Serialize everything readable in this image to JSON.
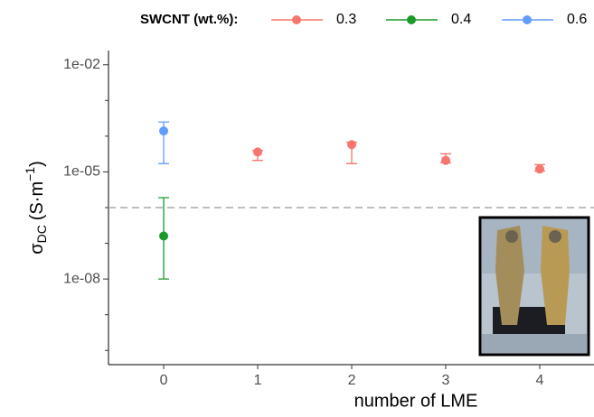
{
  "chart_data": {
    "type": "scatter",
    "y_label": {
      "symbol": "σ",
      "subscript": "DC",
      "unit": "(S·m",
      "superscript": "−1",
      "close": ")"
    },
    "x_label": "number of LME",
    "legend_title": "SWCNT (wt.%):",
    "legend_position": "top",
    "log_y": true,
    "xlim": [
      -0.587,
      4.577
    ],
    "xticks": [
      0,
      1,
      2,
      3,
      4
    ],
    "ylim": [
      4e-11,
      0.025
    ],
    "yticks": [
      {
        "value": 0.01,
        "label": "1e-02"
      },
      {
        "value": 1e-05,
        "label": "1e-05"
      },
      {
        "value": 1e-08,
        "label": "1e-08"
      }
    ],
    "minor_yticks": [
      1e-10,
      1e-09,
      1e-07,
      1e-06,
      0.0001,
      0.001
    ],
    "reference_line": 1e-06,
    "series": [
      {
        "name": "0.3",
        "color": "#F8766D",
        "x": [
          1,
          2,
          3,
          4
        ],
        "values": [
          3.6e-05,
          5.8e-05,
          2.1e-05,
          1.2e-05
        ],
        "lower": [
          2.1e-05,
          1.7e-05,
          1.8e-05,
          1.06e-05
        ],
        "upper": [
          4e-05,
          6.8e-05,
          3.2e-05,
          1.6e-05
        ]
      },
      {
        "name": "0.4",
        "color": "#1A9A2A",
        "x": [
          0
        ],
        "values": [
          1.6e-07
        ],
        "lower": [
          1e-08
        ],
        "upper": [
          1.9e-06
        ]
      },
      {
        "name": "0.6",
        "color": "#619CFF",
        "x": [
          0
        ],
        "values": [
          0.00014
        ],
        "lower": [
          1.7e-05
        ],
        "upper": [
          0.00025
        ]
      }
    ]
  }
}
